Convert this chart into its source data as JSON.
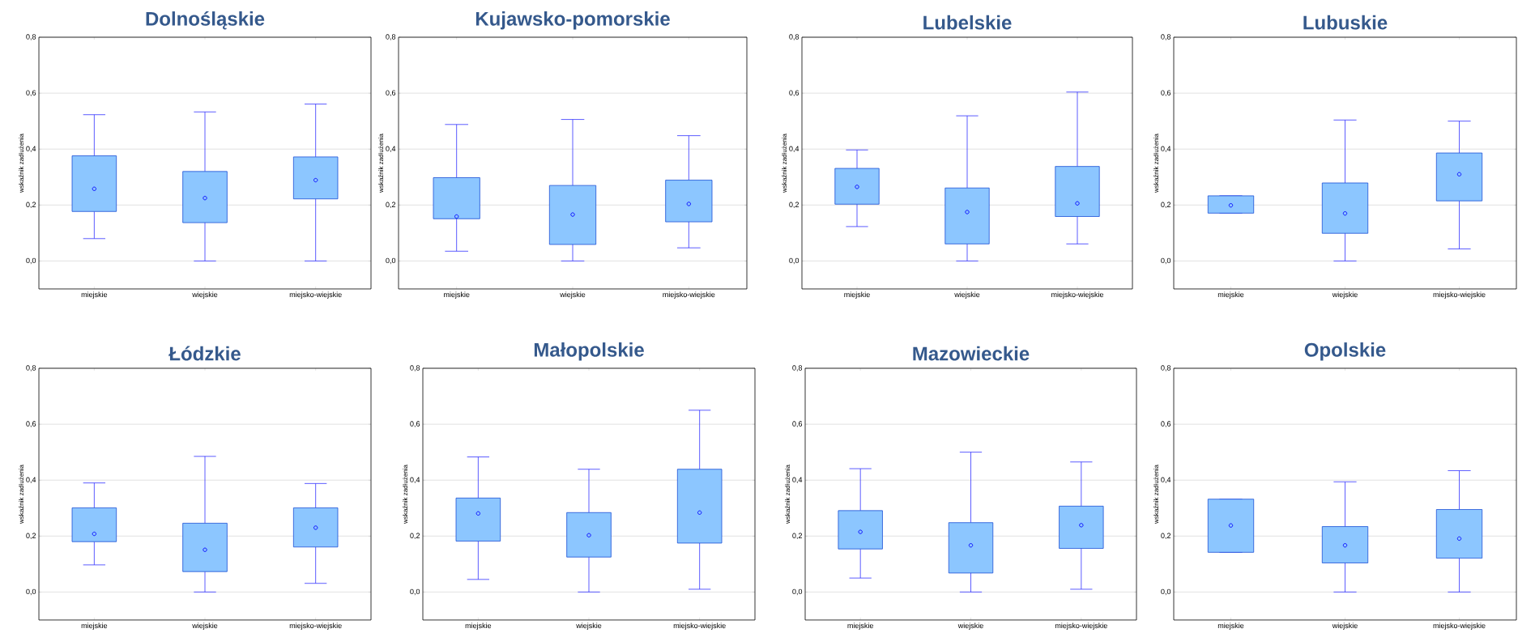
{
  "chart_data": [
    {
      "type": "box",
      "title": "Dolnośląskie",
      "ylabel": "wskaźnik zadłużenia",
      "categories": [
        "miejskie",
        "wiejskie",
        "miejsko-wiejskie"
      ],
      "color": "#8cc6ff",
      "grid": "y",
      "ylim": [
        -0.1,
        0.8
      ],
      "yticks": [
        {
          "value": 0,
          "label": "0,0"
        },
        {
          "value": 0.2,
          "label": "0,2"
        },
        {
          "value": 0.4,
          "label": "0,4"
        },
        {
          "value": 0.6,
          "label": "0,6"
        },
        {
          "value": 0.8,
          "label": "0,8"
        }
      ],
      "boxes": [
        {
          "low": 0.08,
          "q1": 0.177,
          "median": 0.258,
          "q3": 0.376,
          "high": 0.523
        },
        {
          "low": 0,
          "q1": 0.137,
          "median": 0.225,
          "q3": 0.32,
          "high": 0.533
        },
        {
          "low": 0,
          "q1": 0.222,
          "median": 0.289,
          "q3": 0.372,
          "high": 0.561
        }
      ]
    },
    {
      "type": "box",
      "title": "Kujawsko-pomorskie",
      "ylabel": "wskaźnik zadłużenia",
      "categories": [
        "miejskie",
        "wiejskie",
        "miejsko-wiejskie"
      ],
      "color": "#8cc6ff",
      "grid": "y",
      "ylim": [
        -0.1,
        0.8
      ],
      "yticks": [
        {
          "value": 0,
          "label": "0,0"
        },
        {
          "value": 0.2,
          "label": "0,2"
        },
        {
          "value": 0.4,
          "label": "0,4"
        },
        {
          "value": 0.6,
          "label": "0,6"
        },
        {
          "value": 0.8,
          "label": "0,8"
        }
      ],
      "boxes": [
        {
          "low": 0.035,
          "q1": 0.151,
          "median": 0.159,
          "q3": 0.298,
          "high": 0.488
        },
        {
          "low": 0,
          "q1": 0.059,
          "median": 0.166,
          "q3": 0.27,
          "high": 0.506
        },
        {
          "low": 0.047,
          "q1": 0.14,
          "median": 0.204,
          "q3": 0.289,
          "high": 0.448
        }
      ]
    },
    {
      "type": "box",
      "title": "Lubelskie",
      "ylabel": "wskaźnik zadłużenia",
      "categories": [
        "miejskie",
        "wiejskie",
        "miejsko-wiejskie"
      ],
      "color": "#8cc6ff",
      "grid": "y",
      "ylim": [
        -0.1,
        0.8
      ],
      "yticks": [
        {
          "value": 0,
          "label": "0,0"
        },
        {
          "value": 0.2,
          "label": "0,2"
        },
        {
          "value": 0.4,
          "label": "0,4"
        },
        {
          "value": 0.6,
          "label": "0,6"
        },
        {
          "value": 0.8,
          "label": "0,8"
        }
      ],
      "boxes": [
        {
          "low": 0.123,
          "q1": 0.203,
          "median": 0.265,
          "q3": 0.331,
          "high": 0.397
        },
        {
          "low": 0,
          "q1": 0.061,
          "median": 0.175,
          "q3": 0.261,
          "high": 0.519
        },
        {
          "low": 0.061,
          "q1": 0.159,
          "median": 0.206,
          "q3": 0.338,
          "high": 0.604
        }
      ]
    },
    {
      "type": "box",
      "title": "Lubuskie",
      "ylabel": "wskaźnik zadłużenia",
      "categories": [
        "miejskie",
        "wiejskie",
        "miejsko-wiejskie"
      ],
      "color": "#8cc6ff",
      "grid": "y",
      "ylim": [
        -0.1,
        0.8
      ],
      "yticks": [
        {
          "value": 0,
          "label": "0,0"
        },
        {
          "value": 0.2,
          "label": "0,2"
        },
        {
          "value": 0.4,
          "label": "0,4"
        },
        {
          "value": 0.6,
          "label": "0,6"
        },
        {
          "value": 0.8,
          "label": "0,8"
        }
      ],
      "boxes": [
        {
          "low": 0.171,
          "q1": 0.171,
          "median": 0.199,
          "q3": 0.233,
          "high": 0.233
        },
        {
          "low": 0,
          "q1": 0.099,
          "median": 0.17,
          "q3": 0.279,
          "high": 0.504
        },
        {
          "low": 0.043,
          "q1": 0.215,
          "median": 0.31,
          "q3": 0.386,
          "high": 0.5
        }
      ]
    },
    {
      "type": "box",
      "title": "Łódzkie",
      "ylabel": "wskaźnik zadłużenia",
      "categories": [
        "miejskie",
        "wiejskie",
        "miejsko-wiejskie"
      ],
      "color": "#8cc6ff",
      "grid": "y",
      "ylim": [
        -0.1,
        0.8
      ],
      "yticks": [
        {
          "value": 0,
          "label": "0,0"
        },
        {
          "value": 0.2,
          "label": "0,2"
        },
        {
          "value": 0.4,
          "label": "0,4"
        },
        {
          "value": 0.6,
          "label": "0,6"
        },
        {
          "value": 0.8,
          "label": "0,8"
        }
      ],
      "boxes": [
        {
          "low": 0.097,
          "q1": 0.18,
          "median": 0.208,
          "q3": 0.301,
          "high": 0.39
        },
        {
          "low": 0,
          "q1": 0.073,
          "median": 0.151,
          "q3": 0.246,
          "high": 0.485
        },
        {
          "low": 0.031,
          "q1": 0.161,
          "median": 0.23,
          "q3": 0.301,
          "high": 0.388
        }
      ]
    },
    {
      "type": "box",
      "title": "Małopolskie",
      "ylabel": "wskaźnik zadłużenia",
      "categories": [
        "miejskie",
        "wiejskie",
        "miejsko-wiejskie"
      ],
      "color": "#8cc6ff",
      "grid": "y",
      "ylim": [
        -0.1,
        0.8
      ],
      "yticks": [
        {
          "value": 0,
          "label": "0,0"
        },
        {
          "value": 0.2,
          "label": "0,2"
        },
        {
          "value": 0.4,
          "label": "0,4"
        },
        {
          "value": 0.6,
          "label": "0,6"
        },
        {
          "value": 0.8,
          "label": "0,8"
        }
      ],
      "boxes": [
        {
          "low": 0.045,
          "q1": 0.182,
          "median": 0.281,
          "q3": 0.336,
          "high": 0.483
        },
        {
          "low": 0,
          "q1": 0.125,
          "median": 0.203,
          "q3": 0.284,
          "high": 0.439
        },
        {
          "low": 0.01,
          "q1": 0.175,
          "median": 0.284,
          "q3": 0.439,
          "high": 0.65
        }
      ]
    },
    {
      "type": "box",
      "title": "Mazowieckie",
      "ylabel": "wskaźnik zadłużenia",
      "categories": [
        "miejskie",
        "wiejskie",
        "miejsko-wiejskie"
      ],
      "color": "#8cc6ff",
      "grid": "y",
      "ylim": [
        -0.1,
        0.8
      ],
      "yticks": [
        {
          "value": 0,
          "label": "0,0"
        },
        {
          "value": 0.2,
          "label": "0,2"
        },
        {
          "value": 0.4,
          "label": "0,4"
        },
        {
          "value": 0.6,
          "label": "0,6"
        },
        {
          "value": 0.8,
          "label": "0,8"
        }
      ],
      "boxes": [
        {
          "low": 0.05,
          "q1": 0.154,
          "median": 0.215,
          "q3": 0.291,
          "high": 0.441
        },
        {
          "low": 0,
          "q1": 0.068,
          "median": 0.167,
          "q3": 0.248,
          "high": 0.5
        },
        {
          "low": 0.01,
          "q1": 0.156,
          "median": 0.239,
          "q3": 0.307,
          "high": 0.465
        }
      ]
    },
    {
      "type": "box",
      "title": "Opolskie",
      "ylabel": "wskaźnik zadłużenia",
      "categories": [
        "miejskie",
        "wiejskie",
        "miejsko-wiejskie"
      ],
      "color": "#8cc6ff",
      "grid": "y",
      "ylim": [
        -0.1,
        0.8
      ],
      "yticks": [
        {
          "value": 0,
          "label": "0,0"
        },
        {
          "value": 0.2,
          "label": "0,2"
        },
        {
          "value": 0.4,
          "label": "0,4"
        },
        {
          "value": 0.6,
          "label": "0,6"
        },
        {
          "value": 0.8,
          "label": "0,8"
        }
      ],
      "boxes": [
        {
          "low": 0.142,
          "q1": 0.142,
          "median": 0.238,
          "q3": 0.332,
          "high": 0.332
        },
        {
          "low": 0,
          "q1": 0.104,
          "median": 0.167,
          "q3": 0.234,
          "high": 0.394
        },
        {
          "low": 0,
          "q1": 0.121,
          "median": 0.191,
          "q3": 0.295,
          "high": 0.434
        }
      ]
    }
  ]
}
